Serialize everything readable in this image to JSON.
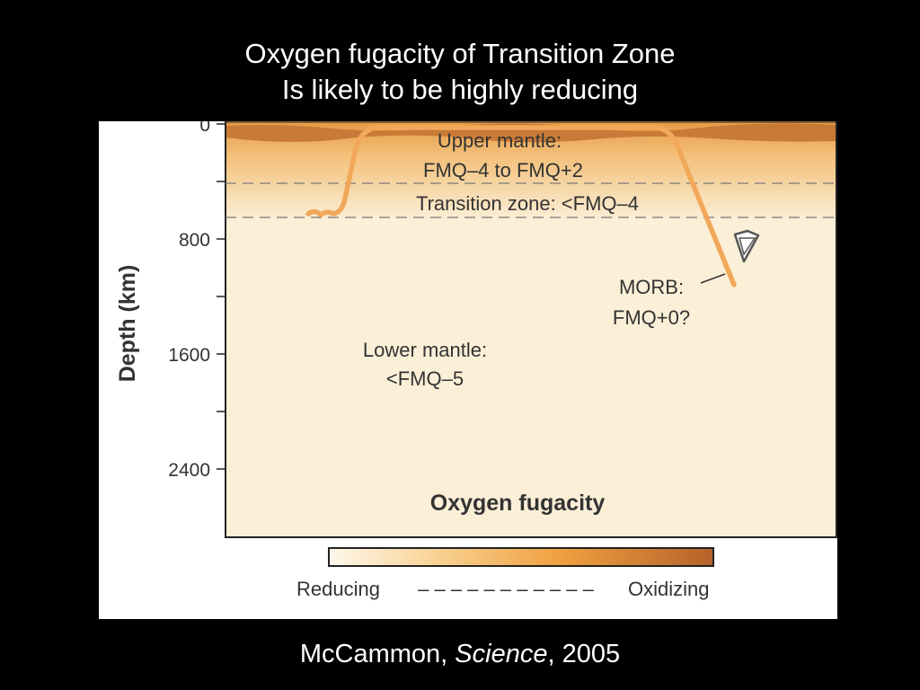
{
  "title": {
    "line1": "Oxygen fugacity of Transition Zone",
    "line2": "Is likely to be highly reducing"
  },
  "figure": {
    "y_axis_label": "Depth (km)",
    "y_ticks": [
      "0",
      "800",
      "1600",
      "2400"
    ],
    "labels": {
      "upper_mantle_1": "Upper mantle:",
      "upper_mantle_2": "FMQ–4 to FMQ+2",
      "transition_zone": "Transition zone: <FMQ–4",
      "morb_1": "MORB:",
      "morb_2": "FMQ+0?",
      "lower_mantle_1": "Lower mantle:",
      "lower_mantle_2": "<FMQ–5",
      "panel_title": "Oxygen fugacity"
    },
    "colorbar": {
      "left_label": "Reducing",
      "dashes": "– – – – – – – – – – –",
      "right_label": "Oxidizing"
    },
    "colors": {
      "reducing": "#fff6e6",
      "mid": "#f0a040",
      "oxidizing": "#b5622a",
      "background": "#fbefd7",
      "slab": "#f2a85a"
    },
    "icons": [
      "diamond-icon"
    ]
  },
  "citation": {
    "author": "McCammon, ",
    "journal": "Science",
    "year": ", 2005"
  }
}
